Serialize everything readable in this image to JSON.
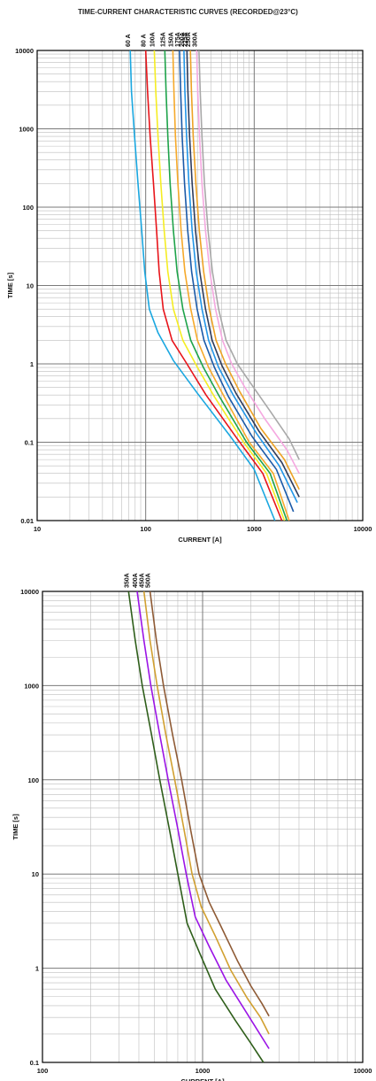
{
  "title": "TIME-CURRENT CHARACTERISTIC CURVES (RECORDED@23°C)",
  "chart_data": [
    {
      "type": "line",
      "xscale": "log",
      "yscale": "log",
      "xlim": [
        10,
        10000
      ],
      "ylim": [
        0.01,
        10000
      ],
      "xlabel": "CURRENT [A]",
      "ylabel": "TIME [s]",
      "xticks": [
        "10",
        "100",
        "1000",
        "10000"
      ],
      "yticks": [
        "0.01",
        "0.1",
        "1",
        "10",
        "100",
        "1000",
        "10000"
      ],
      "grid": true,
      "series": [
        {
          "name": "60 A",
          "color": "#1aa7e0",
          "points": [
            [
              72,
              10000
            ],
            [
              74,
              3000
            ],
            [
              79,
              800
            ],
            [
              85,
              200
            ],
            [
              92,
              50
            ],
            [
              98,
              15
            ],
            [
              108,
              5
            ],
            [
              130,
              2.5
            ],
            [
              180,
              1.1
            ],
            [
              300,
              0.42
            ],
            [
              600,
              0.12
            ],
            [
              1000,
              0.045
            ],
            [
              1550,
              0.01
            ]
          ]
        },
        {
          "name": "80 A",
          "color": "#e8141a",
          "points": [
            [
              100,
              10000
            ],
            [
              104,
              3000
            ],
            [
              110,
              800
            ],
            [
              118,
              200
            ],
            [
              126,
              50
            ],
            [
              133,
              15
            ],
            [
              145,
              5
            ],
            [
              175,
              2
            ],
            [
              240,
              1
            ],
            [
              360,
              0.4
            ],
            [
              700,
              0.11
            ],
            [
              1200,
              0.04
            ],
            [
              1800,
              0.01
            ]
          ]
        },
        {
          "name": "100A",
          "color": "#f5ed22",
          "points": [
            [
              120,
              10000
            ],
            [
              124,
              3000
            ],
            [
              130,
              800
            ],
            [
              138,
              200
            ],
            [
              148,
              50
            ],
            [
              160,
              15
            ],
            [
              180,
              5
            ],
            [
              220,
              2
            ],
            [
              300,
              0.9
            ],
            [
              430,
              0.38
            ],
            [
              800,
              0.1
            ],
            [
              1300,
              0.04
            ],
            [
              1900,
              0.01
            ]
          ]
        },
        {
          "name": "125A",
          "color": "#1ea34a",
          "points": [
            [
              150,
              10000
            ],
            [
              154,
              3000
            ],
            [
              160,
              800
            ],
            [
              168,
              200
            ],
            [
              180,
              50
            ],
            [
              195,
              15
            ],
            [
              220,
              5
            ],
            [
              260,
              2
            ],
            [
              340,
              0.9
            ],
            [
              480,
              0.38
            ],
            [
              850,
              0.1
            ],
            [
              1400,
              0.04
            ],
            [
              2000,
              0.01
            ]
          ]
        },
        {
          "name": "150A",
          "color": "#f6a92a",
          "points": [
            [
              178,
              10000
            ],
            [
              182,
              3000
            ],
            [
              188,
              800
            ],
            [
              198,
              200
            ],
            [
              212,
              50
            ],
            [
              230,
              15
            ],
            [
              260,
              5
            ],
            [
              300,
              2
            ],
            [
              380,
              0.9
            ],
            [
              530,
              0.38
            ],
            [
              900,
              0.1
            ],
            [
              1500,
              0.04
            ],
            [
              2100,
              0.01
            ]
          ]
        },
        {
          "name": "175A",
          "color": "#1b5aa8",
          "points": [
            [
              205,
              10000
            ],
            [
              210,
              3000
            ],
            [
              217,
              800
            ],
            [
              228,
              200
            ],
            [
              244,
              50
            ],
            [
              265,
              15
            ],
            [
              298,
              5
            ],
            [
              345,
              2
            ],
            [
              430,
              0.9
            ],
            [
              580,
              0.38
            ],
            [
              950,
              0.12
            ],
            [
              1600,
              0.045
            ],
            [
              2300,
              0.013
            ]
          ]
        },
        {
          "name": "200A",
          "color": "#2296e8",
          "points": [
            [
              225,
              10000
            ],
            [
              230,
              3000
            ],
            [
              238,
              800
            ],
            [
              250,
              200
            ],
            [
              268,
              50
            ],
            [
              292,
              15
            ],
            [
              330,
              5
            ],
            [
              380,
              2
            ],
            [
              470,
              0.9
            ],
            [
              640,
              0.4
            ],
            [
              1050,
              0.13
            ],
            [
              1700,
              0.05
            ],
            [
              2500,
              0.017
            ]
          ]
        },
        {
          "name": "225A",
          "color": "#2e3c5c",
          "points": [
            [
              240,
              10000
            ],
            [
              245,
              3000
            ],
            [
              254,
              800
            ],
            [
              268,
              200
            ],
            [
              288,
              50
            ],
            [
              315,
              15
            ],
            [
              356,
              5
            ],
            [
              410,
              2
            ],
            [
              505,
              0.95
            ],
            [
              680,
              0.42
            ],
            [
              1100,
              0.14
            ],
            [
              1800,
              0.055
            ],
            [
              2600,
              0.02
            ]
          ]
        },
        {
          "name": "250A",
          "color": "#eea224",
          "points": [
            [
              258,
              10000
            ],
            [
              264,
              3000
            ],
            [
              274,
              800
            ],
            [
              290,
              200
            ],
            [
              312,
              50
            ],
            [
              342,
              15
            ],
            [
              386,
              5
            ],
            [
              445,
              2
            ],
            [
              545,
              1
            ],
            [
              730,
              0.45
            ],
            [
              1150,
              0.15
            ],
            [
              1900,
              0.06
            ],
            [
              2600,
              0.025
            ]
          ]
        },
        {
          "name": "300A",
          "color": "#f5a8e0",
          "points": [
            [
              295,
              10000
            ],
            [
              302,
              3000
            ],
            [
              313,
              800
            ],
            [
              330,
              200
            ],
            [
              356,
              50
            ],
            [
              390,
              15
            ],
            [
              440,
              5
            ],
            [
              510,
              2
            ],
            [
              620,
              1
            ],
            [
              820,
              0.5
            ],
            [
              1250,
              0.2
            ],
            [
              2000,
              0.08
            ],
            [
              2600,
              0.04
            ]
          ]
        },
        {
          "name": "",
          "color": "#a8a8a8",
          "points": [
            [
              310,
              10000
            ],
            [
              318,
              3000
            ],
            [
              330,
              800
            ],
            [
              348,
              200
            ],
            [
              376,
              50
            ],
            [
              412,
              15
            ],
            [
              470,
              5
            ],
            [
              550,
              2
            ],
            [
              700,
              1
            ],
            [
              900,
              0.6
            ],
            [
              1400,
              0.25
            ],
            [
              2100,
              0.11
            ],
            [
              2600,
              0.06
            ]
          ]
        }
      ]
    },
    {
      "type": "line",
      "xscale": "log",
      "yscale": "log",
      "xlim": [
        100,
        10000
      ],
      "ylim": [
        0.1,
        10000
      ],
      "xlabel": "CURRENT [A]",
      "ylabel": "TIME [s]",
      "xticks": [
        "100",
        "1000",
        "10000"
      ],
      "yticks": [
        "0.1",
        "1",
        "10",
        "100",
        "1000",
        "10000"
      ],
      "grid": true,
      "series": [
        {
          "name": "350A",
          "color": "#2e5e1a",
          "points": [
            [
              345,
              10000
            ],
            [
              380,
              3000
            ],
            [
              420,
              1000
            ],
            [
              480,
              300
            ],
            [
              540,
              100
            ],
            [
              620,
              30
            ],
            [
              700,
              10
            ],
            [
              800,
              3
            ],
            [
              950,
              1.5
            ],
            [
              1200,
              0.6
            ],
            [
              1600,
              0.28
            ],
            [
              2000,
              0.16
            ],
            [
              2400,
              0.1
            ]
          ]
        },
        {
          "name": "400A",
          "color": "#9b14e6",
          "points": [
            [
              390,
              10000
            ],
            [
              430,
              3000
            ],
            [
              475,
              1000
            ],
            [
              540,
              300
            ],
            [
              610,
              100
            ],
            [
              700,
              30
            ],
            [
              790,
              10
            ],
            [
              900,
              3.5
            ],
            [
              1100,
              1.7
            ],
            [
              1400,
              0.75
            ],
            [
              1800,
              0.38
            ],
            [
              2200,
              0.22
            ],
            [
              2600,
              0.14
            ]
          ]
        },
        {
          "name": "450A",
          "color": "#d1a030",
          "points": [
            [
              430,
              10000
            ],
            [
              470,
              3000
            ],
            [
              520,
              1000
            ],
            [
              590,
              300
            ],
            [
              670,
              100
            ],
            [
              765,
              30
            ],
            [
              860,
              10
            ],
            [
              980,
              4.5
            ],
            [
              1200,
              2.2
            ],
            [
              1500,
              0.95
            ],
            [
              1900,
              0.48
            ],
            [
              2300,
              0.3
            ],
            [
              2600,
              0.2
            ]
          ]
        },
        {
          "name": "500A",
          "color": "#8e5a34",
          "points": [
            [
              470,
              10000
            ],
            [
              515,
              3000
            ],
            [
              570,
              1000
            ],
            [
              650,
              300
            ],
            [
              740,
              100
            ],
            [
              840,
              30
            ],
            [
              950,
              10
            ],
            [
              1100,
              5
            ],
            [
              1300,
              2.8
            ],
            [
              1650,
              1.2
            ],
            [
              2000,
              0.65
            ],
            [
              2350,
              0.42
            ],
            [
              2600,
              0.31
            ]
          ]
        }
      ]
    }
  ]
}
